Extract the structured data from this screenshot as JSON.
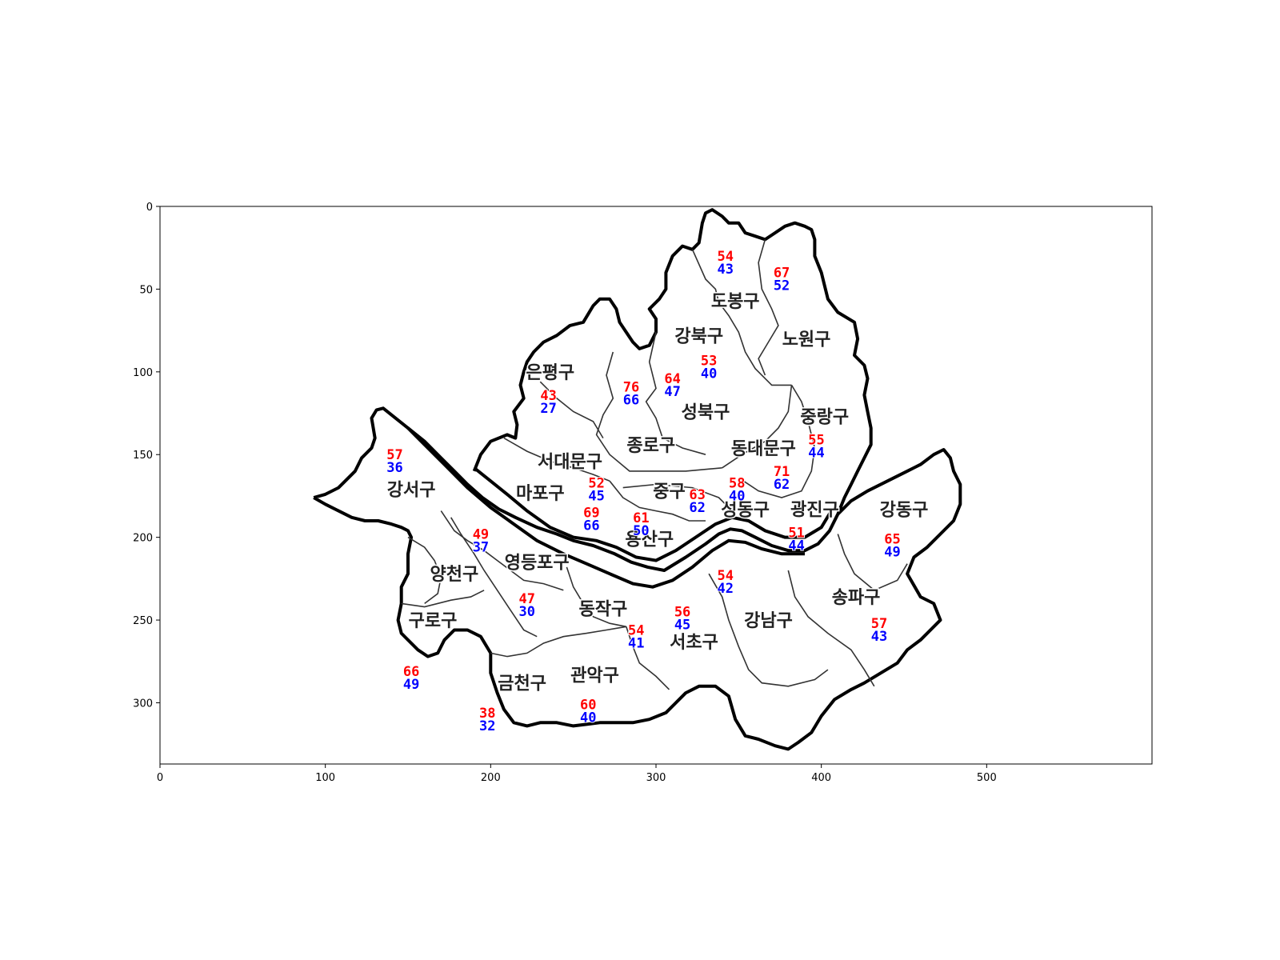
{
  "axes": {
    "x_ticks": [
      "0",
      "100",
      "200",
      "300",
      "400",
      "500"
    ],
    "y_ticks": [
      "0",
      "50",
      "100",
      "150",
      "200",
      "250",
      "300"
    ],
    "xlim": [
      0,
      600
    ],
    "ylim": [
      337,
      0
    ]
  },
  "colors": {
    "red_value": "#ff0000",
    "blue_value": "#0000ff",
    "outline": "#000000"
  },
  "districts": [
    {
      "name": "도봉구",
      "x": 348,
      "y": 57
    },
    {
      "name": "강북구",
      "x": 326,
      "y": 78
    },
    {
      "name": "노원구",
      "x": 391,
      "y": 80
    },
    {
      "name": "은평구",
      "x": 236,
      "y": 100
    },
    {
      "name": "성북구",
      "x": 330,
      "y": 124
    },
    {
      "name": "중랑구",
      "x": 402,
      "y": 127
    },
    {
      "name": "종로구",
      "x": 297,
      "y": 144
    },
    {
      "name": "동대문구",
      "x": 365,
      "y": 146
    },
    {
      "name": "서대문구",
      "x": 248,
      "y": 154
    },
    {
      "name": "강서구",
      "x": 152,
      "y": 171
    },
    {
      "name": "마포구",
      "x": 230,
      "y": 173
    },
    {
      "name": "중구",
      "x": 308,
      "y": 172
    },
    {
      "name": "성동구",
      "x": 354,
      "y": 183
    },
    {
      "name": "광진구",
      "x": 396,
      "y": 183
    },
    {
      "name": "강동구",
      "x": 450,
      "y": 183
    },
    {
      "name": "용산구",
      "x": 296,
      "y": 201
    },
    {
      "name": "영등포구",
      "x": 228,
      "y": 215
    },
    {
      "name": "양천구",
      "x": 178,
      "y": 222
    },
    {
      "name": "송파구",
      "x": 421,
      "y": 236
    },
    {
      "name": "동작구",
      "x": 268,
      "y": 243
    },
    {
      "name": "강남구",
      "x": 368,
      "y": 250
    },
    {
      "name": "구로구",
      "x": 165,
      "y": 250
    },
    {
      "name": "서초구",
      "x": 323,
      "y": 263
    },
    {
      "name": "관악구",
      "x": 263,
      "y": 283
    },
    {
      "name": "금천구",
      "x": 219,
      "y": 288
    }
  ],
  "values": [
    {
      "red": "54",
      "blue": "43",
      "x": 342,
      "y": 30
    },
    {
      "red": "67",
      "blue": "52",
      "x": 376,
      "y": 40
    },
    {
      "red": "53",
      "blue": "40",
      "x": 332,
      "y": 93
    },
    {
      "red": "76",
      "blue": "66",
      "x": 285,
      "y": 109
    },
    {
      "red": "64",
      "blue": "47",
      "x": 310,
      "y": 104
    },
    {
      "red": "43",
      "blue": "27",
      "x": 235,
      "y": 114
    },
    {
      "red": "55",
      "blue": "44",
      "x": 397,
      "y": 141
    },
    {
      "red": "57",
      "blue": "36",
      "x": 142,
      "y": 150
    },
    {
      "red": "71",
      "blue": "62",
      "x": 376,
      "y": 160
    },
    {
      "red": "52",
      "blue": "45",
      "x": 264,
      "y": 167
    },
    {
      "red": "58",
      "blue": "40",
      "x": 349,
      "y": 167
    },
    {
      "red": "63",
      "blue": "62",
      "x": 325,
      "y": 174
    },
    {
      "red": "69",
      "blue": "66",
      "x": 261,
      "y": 185
    },
    {
      "red": "61",
      "blue": "50",
      "x": 291,
      "y": 188
    },
    {
      "red": "49",
      "blue": "37",
      "x": 194,
      "y": 198
    },
    {
      "red": "51",
      "blue": "44",
      "x": 385,
      "y": 197
    },
    {
      "red": "65",
      "blue": "49",
      "x": 443,
      "y": 201
    },
    {
      "red": "54",
      "blue": "42",
      "x": 342,
      "y": 223
    },
    {
      "red": "47",
      "blue": "30",
      "x": 222,
      "y": 237
    },
    {
      "red": "56",
      "blue": "45",
      "x": 316,
      "y": 245
    },
    {
      "red": "57",
      "blue": "43",
      "x": 435,
      "y": 252
    },
    {
      "red": "54",
      "blue": "41",
      "x": 288,
      "y": 256
    },
    {
      "red": "66",
      "blue": "49",
      "x": 152,
      "y": 281
    },
    {
      "red": "60",
      "blue": "40",
      "x": 259,
      "y": 301
    },
    {
      "red": "38",
      "blue": "32",
      "x": 198,
      "y": 306
    }
  ]
}
